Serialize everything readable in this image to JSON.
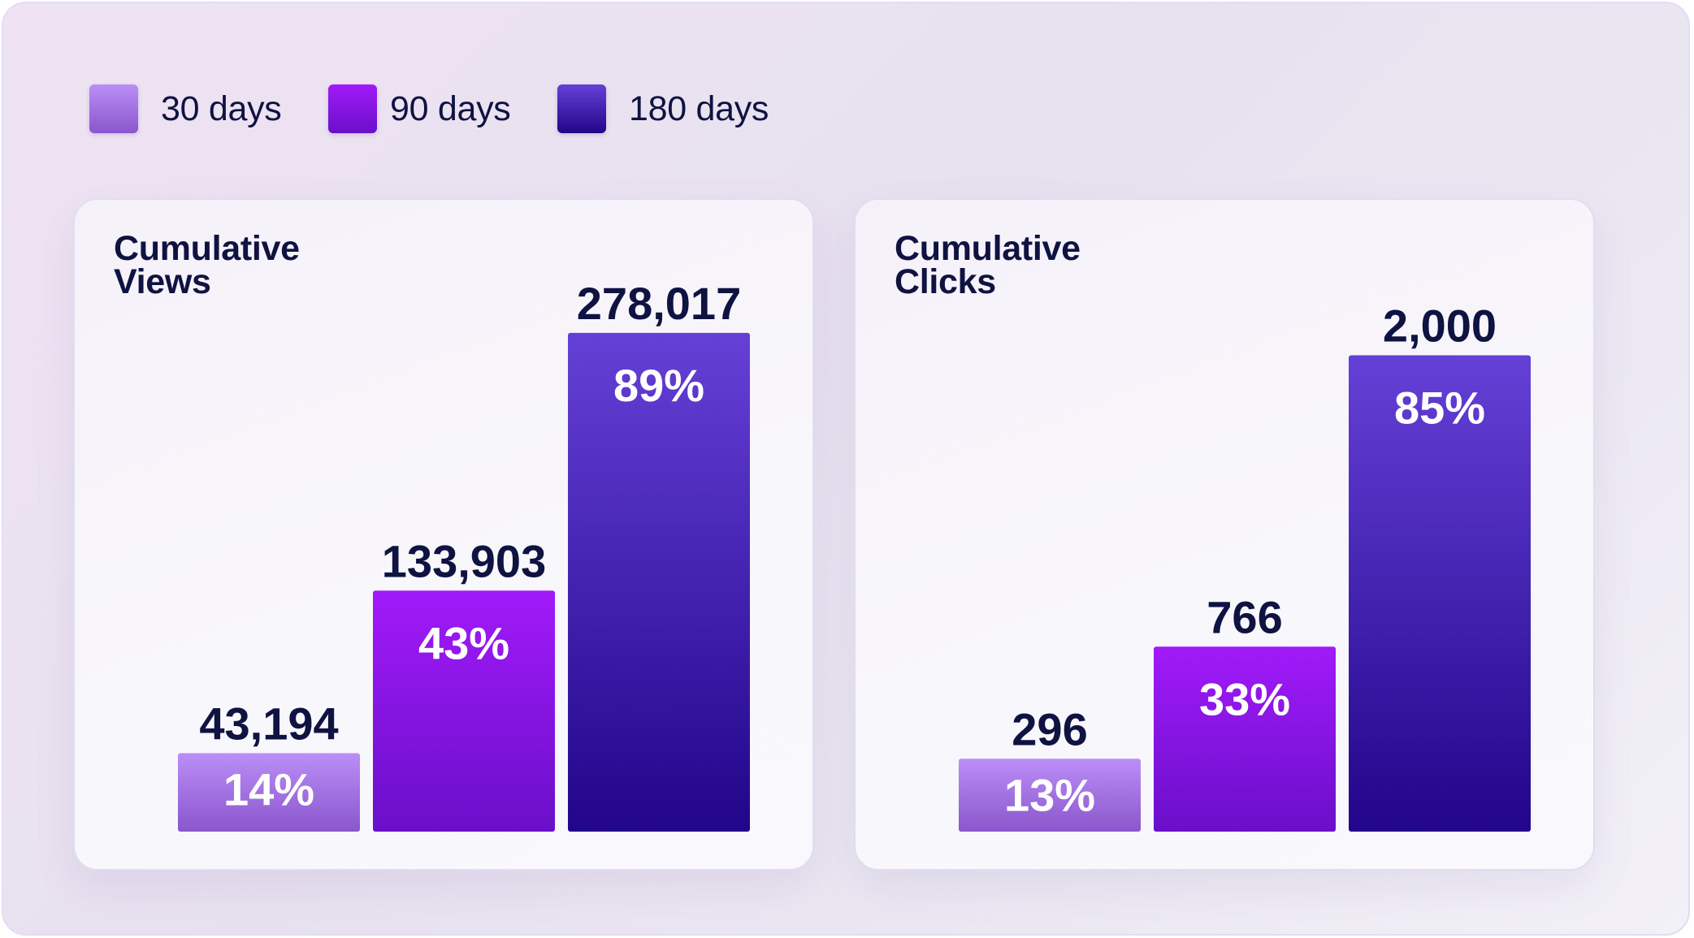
{
  "legend": [
    {
      "label": "30 days",
      "color": "#a97ae6"
    },
    {
      "label": "90 days",
      "color": "#9b18f2"
    },
    {
      "label": "180 days",
      "color": "#4a2cc7"
    }
  ],
  "colors": {
    "d30_top": "#bb8ef7",
    "d30_bottom": "#8a56cc",
    "d90_top": "#a11af9",
    "d90_bottom": "#6a0fc9",
    "d180_top": "#6540d6",
    "d180_bottom": "#22058a",
    "text_dark": "#0f1341"
  },
  "chart_data": [
    {
      "type": "bar",
      "title": "Cumulative Views",
      "categories": [
        "30 days",
        "90 days",
        "180 days"
      ],
      "values": [
        43194,
        133903,
        278017
      ],
      "value_labels": [
        "43,194",
        "133,903",
        "278,017"
      ],
      "percent_labels": [
        "14%",
        "43%",
        "89%"
      ],
      "percents": [
        14,
        43,
        89
      ],
      "legend": "top-left",
      "grid": false
    },
    {
      "type": "bar",
      "title": "Cumulative Clicks",
      "categories": [
        "30 days",
        "90 days",
        "180 days"
      ],
      "values": [
        296,
        766,
        2000
      ],
      "value_labels": [
        "296",
        "766",
        "2,000"
      ],
      "percent_labels": [
        "13%",
        "33%",
        "85%"
      ],
      "percents": [
        13,
        33,
        85
      ],
      "legend": "top-left",
      "grid": false
    }
  ]
}
